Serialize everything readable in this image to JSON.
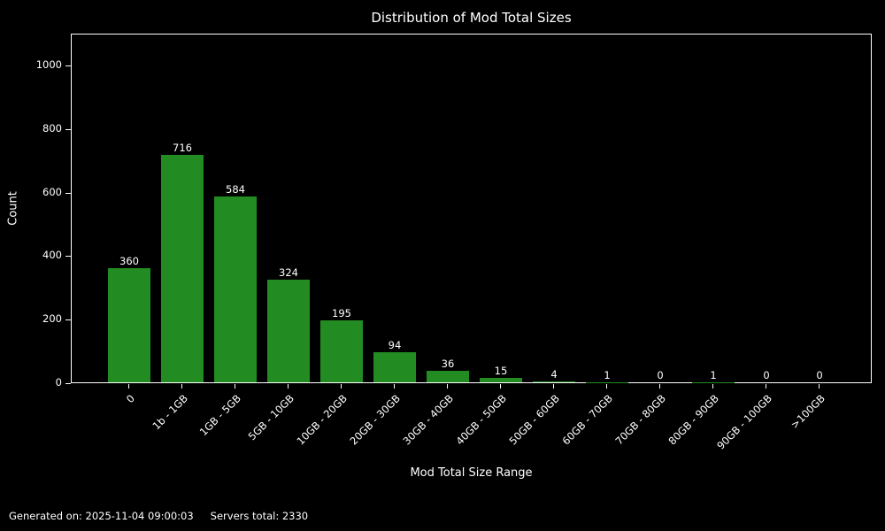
{
  "title": "Distribution of Mod Total Sizes",
  "footer": {
    "generated": "Generated on: 2025-11-04 09:00:03",
    "servers_total": "Servers total: 2330"
  },
  "colors": {
    "background": "#000000",
    "bar": "#228B22",
    "text": "#ffffff",
    "axis": "#ffffff"
  },
  "chart_data": {
    "type": "bar",
    "title": "Distribution of Mod Total Sizes",
    "xlabel": "Mod Total Size Range",
    "ylabel": "Count",
    "categories": [
      "0",
      "1b - 1GB",
      "1GB - 5GB",
      "5GB - 10GB",
      "10GB - 20GB",
      "20GB - 30GB",
      "30GB - 40GB",
      "40GB - 50GB",
      "50GB - 60GB",
      "60GB - 70GB",
      "70GB - 80GB",
      "80GB - 90GB",
      "90GB - 100GB",
      ">100GB"
    ],
    "values": [
      360,
      716,
      584,
      324,
      195,
      94,
      36,
      15,
      4,
      1,
      0,
      1,
      0,
      0
    ],
    "yticks": [
      0,
      200,
      400,
      600,
      800,
      1000
    ],
    "ylim": [
      0,
      1100
    ],
    "grid": false,
    "legend": null,
    "bar_color": "#228B22",
    "xtick_rotation": 45
  }
}
